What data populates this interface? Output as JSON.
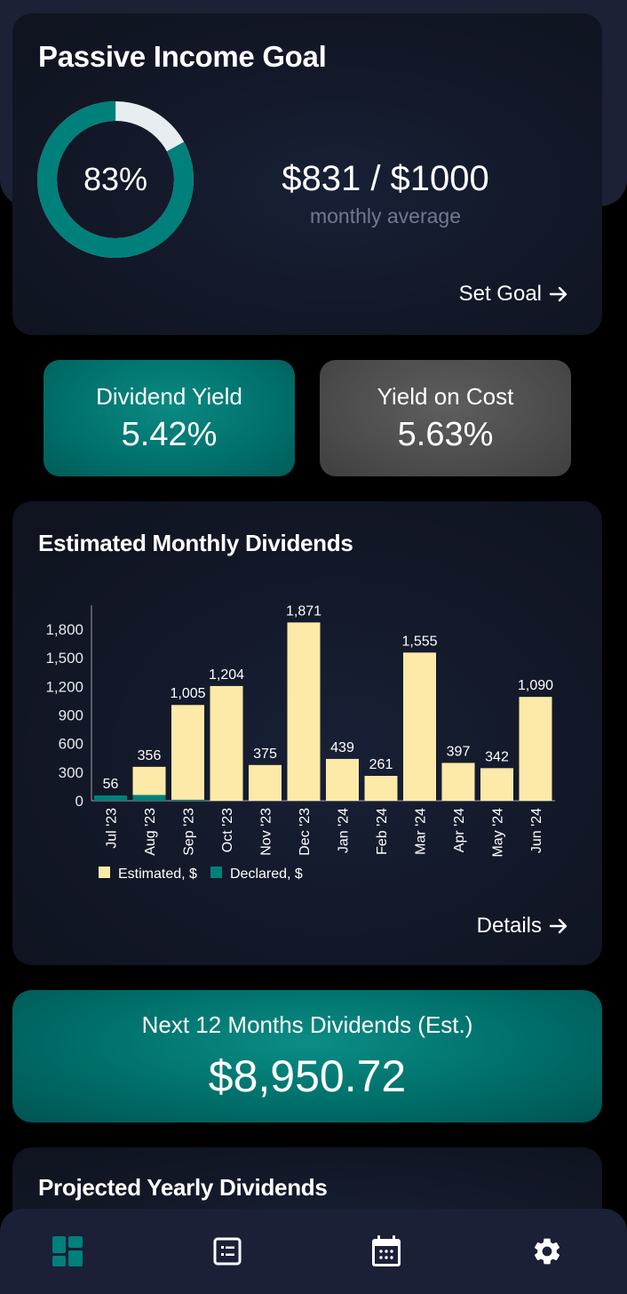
{
  "goal": {
    "title": "Passive Income Goal",
    "percent_label": "83%",
    "percent": 83,
    "amount": "$831 / $1000",
    "subtitle": "monthly average",
    "set_goal_label": "Set Goal",
    "ring_color": "#00807a",
    "track_color": "#e8edf2"
  },
  "stats": [
    {
      "label": "Dividend Yield",
      "value": "5.42%",
      "color": "#00706b"
    },
    {
      "label": "Yield on Cost",
      "value": "5.63%",
      "color": "#4c4c4c"
    }
  ],
  "monthly": {
    "title": "Estimated Monthly Dividends",
    "details_label": "Details"
  },
  "chart_data": {
    "type": "bar",
    "title": "Estimated Monthly Dividends",
    "categories": [
      "Jul '23",
      "Aug '23",
      "Sep '23",
      "Oct '23",
      "Nov '23",
      "Dec '23",
      "Jan '24",
      "Feb '24",
      "Mar '24",
      "Apr '24",
      "May '24",
      "Jun '24"
    ],
    "series": [
      {
        "name": "Estimated, $",
        "color": "#fdeaa8",
        "values": [
          56,
          356,
          1005,
          1204,
          375,
          1871,
          439,
          261,
          1555,
          397,
          342,
          1090
        ]
      },
      {
        "name": "Declared, $",
        "color": "#00807a",
        "values": [
          56,
          60,
          10,
          0,
          0,
          0,
          0,
          0,
          0,
          0,
          0,
          0
        ]
      }
    ],
    "data_labels": [
      "56",
      "356",
      "1,005",
      "1,204",
      "375",
      "1,871",
      "439",
      "261",
      "1,555",
      "397",
      "342",
      "1,090"
    ],
    "yticks": [
      0,
      300,
      600,
      900,
      1200,
      1500,
      1800
    ],
    "ytick_labels": [
      "0",
      "300",
      "600",
      "900",
      "1,200",
      "1,500",
      "1,800"
    ],
    "ylim": [
      0,
      2000
    ],
    "xlabel": "",
    "ylabel": "",
    "grid": false,
    "legend_position": "bottom-left"
  },
  "next12": {
    "label": "Next 12 Months Dividends (Est.)",
    "value": "$8,950.72"
  },
  "yearly": {
    "title": "Projected Yearly Dividends"
  },
  "nav": {
    "items": [
      {
        "name": "dashboard",
        "icon": "dashboard-icon",
        "active": true
      },
      {
        "name": "list",
        "icon": "list-icon",
        "active": false
      },
      {
        "name": "calendar",
        "icon": "calendar-icon",
        "active": false
      },
      {
        "name": "settings",
        "icon": "gear-icon",
        "active": false
      }
    ],
    "active_color": "#00807a",
    "inactive_color": "#ffffff"
  }
}
